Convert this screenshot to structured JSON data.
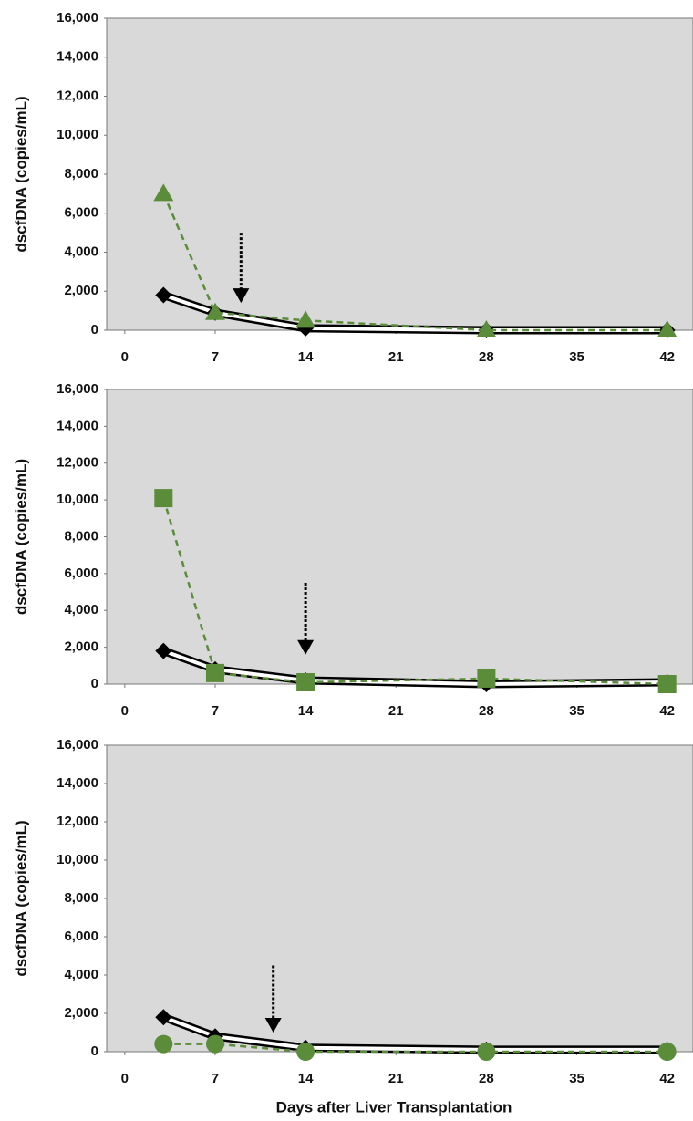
{
  "chart_data": [
    {
      "type": "line",
      "ylabel": "dscfDNA (copies/mL)",
      "x": [
        3,
        7,
        14,
        28,
        42
      ],
      "series": [
        {
          "color": "#000000",
          "marker": "diamond",
          "style": "double",
          "values": [
            1800,
            900,
            100,
            0,
            0
          ]
        },
        {
          "color": "#5b8c3a",
          "marker": "triangle",
          "style": "dashed",
          "values": [
            7000,
            900,
            500,
            0,
            0
          ]
        }
      ],
      "arrow": {
        "x": 9,
        "y_top": 5000,
        "y_bottom": 1400
      },
      "xlim": [
        -1.4,
        44
      ],
      "ylim": [
        0,
        16000
      ],
      "xticks": [
        0,
        7,
        14,
        21,
        28,
        35,
        42
      ],
      "yticks": [
        0,
        {
          "value": 2000,
          "label": "2,000"
        },
        {
          "value": 4000,
          "label": "4,000"
        },
        {
          "value": 6000,
          "label": "6,000"
        },
        {
          "value": 8000,
          "label": "8,000"
        },
        {
          "value": 10000,
          "label": "10,000"
        },
        {
          "value": 12000,
          "label": "12,000"
        },
        {
          "value": 14000,
          "label": "14,000"
        },
        {
          "value": 16000,
          "label": "16,000"
        }
      ]
    },
    {
      "type": "line",
      "ylabel": "dscfDNA (copies/mL)",
      "x": [
        3,
        7,
        14,
        28,
        42
      ],
      "series": [
        {
          "color": "#000000",
          "marker": "diamond",
          "style": "double",
          "values": [
            1800,
            800,
            200,
            0,
            100
          ]
        },
        {
          "color": "#5b8c3a",
          "marker": "square",
          "style": "dashed",
          "values": [
            10100,
            600,
            100,
            300,
            0
          ]
        }
      ],
      "arrow": {
        "x": 14,
        "y_top": 5500,
        "y_bottom": 1600
      },
      "xlim": [
        -1.4,
        44
      ],
      "ylim": [
        0,
        16000
      ],
      "xticks": [
        0,
        7,
        14,
        21,
        28,
        35,
        42
      ],
      "yticks": [
        0,
        {
          "value": 2000,
          "label": "2,000"
        },
        {
          "value": 4000,
          "label": "4,000"
        },
        {
          "value": 6000,
          "label": "6,000"
        },
        {
          "value": 8000,
          "label": "8,000"
        },
        {
          "value": 10000,
          "label": "10,000"
        },
        {
          "value": 12000,
          "label": "12,000"
        },
        {
          "value": 14000,
          "label": "14,000"
        },
        {
          "value": 16000,
          "label": "16,000"
        }
      ]
    },
    {
      "type": "line",
      "ylabel": "dscfDNA (copies/mL)",
      "xlabel": "Days after Liver Transplantation",
      "x": [
        3,
        7,
        14,
        28,
        42
      ],
      "series": [
        {
          "color": "#000000",
          "marker": "diamond",
          "style": "double",
          "values": [
            1800,
            800,
            200,
            100,
            100
          ]
        },
        {
          "color": "#5b8c3a",
          "marker": "circle",
          "style": "dashed",
          "values": [
            400,
            400,
            0,
            0,
            0
          ]
        }
      ],
      "arrow": {
        "x": 11.5,
        "y_top": 4500,
        "y_bottom": 1000
      },
      "xlim": [
        -1.4,
        44
      ],
      "ylim": [
        0,
        16000
      ],
      "xticks": [
        0,
        7,
        14,
        21,
        28,
        35,
        42
      ],
      "yticks": [
        0,
        {
          "value": 2000,
          "label": "2,000"
        },
        {
          "value": 4000,
          "label": "4,000"
        },
        {
          "value": 6000,
          "label": "6,000"
        },
        {
          "value": 8000,
          "label": "8,000"
        },
        {
          "value": 10000,
          "label": "10,000"
        },
        {
          "value": 12000,
          "label": "12,000"
        },
        {
          "value": 14000,
          "label": "14,000"
        },
        {
          "value": 16000,
          "label": "16,000"
        }
      ]
    }
  ]
}
